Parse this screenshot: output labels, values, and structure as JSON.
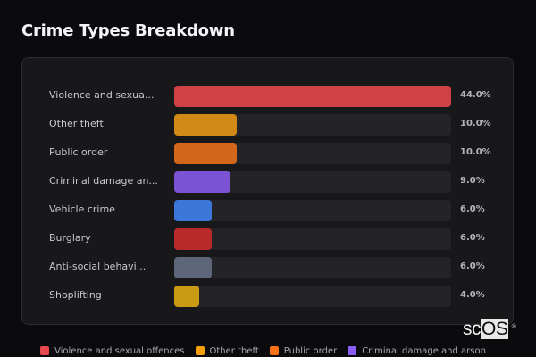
{
  "header": {
    "title": "Crime Types Breakdown"
  },
  "rows": [
    {
      "label": "Violence and sexua...",
      "value": 44.0,
      "pct": "44.0%",
      "color": "#cf4145"
    },
    {
      "label": "Other theft",
      "value": 10.0,
      "pct": "10.0%",
      "color": "#d08a15"
    },
    {
      "label": "Public order",
      "value": 10.0,
      "pct": "10.0%",
      "color": "#d2661b"
    },
    {
      "label": "Criminal damage an...",
      "value": 9.0,
      "pct": "9.0%",
      "color": "#7a53d4"
    },
    {
      "label": "Vehicle crime",
      "value": 6.0,
      "pct": "6.0%",
      "color": "#3a77d8"
    },
    {
      "label": "Burglary",
      "value": 6.0,
      "pct": "6.0%",
      "color": "#bb2a2a"
    },
    {
      "label": "Anti-social behavi...",
      "value": 6.0,
      "pct": "6.0%",
      "color": "#5c6678"
    },
    {
      "label": "Shoplifting",
      "value": 4.0,
      "pct": "4.0%",
      "color": "#c99a14"
    }
  ],
  "legend": [
    {
      "label": "Violence and sexual offences",
      "color": "#e5484d"
    },
    {
      "label": "Other theft",
      "color": "#f59e0b"
    },
    {
      "label": "Public order",
      "color": "#f97316"
    },
    {
      "label": "Criminal damage and arson",
      "color": "#8b5cf6"
    }
  ],
  "logo": {
    "left": "sc",
    "right": "OS",
    "mark": "®"
  },
  "chart_data": {
    "type": "bar",
    "orientation": "horizontal",
    "title": "Crime Types Breakdown",
    "categories": [
      "Violence and sexual offences",
      "Other theft",
      "Public order",
      "Criminal damage and arson",
      "Vehicle crime",
      "Burglary",
      "Anti-social behaviour",
      "Shoplifting"
    ],
    "display_labels": [
      "Violence and sexua...",
      "Other theft",
      "Public order",
      "Criminal damage an...",
      "Vehicle crime",
      "Burglary",
      "Anti-social behavi...",
      "Shoplifting"
    ],
    "values": [
      44.0,
      10.0,
      10.0,
      9.0,
      6.0,
      6.0,
      6.0,
      4.0
    ],
    "unit": "%",
    "xlabel": "",
    "ylabel": "",
    "xlim": [
      0,
      44
    ],
    "grid": false,
    "legend_position": "bottom",
    "legend_entries": [
      "Violence and sexual offences",
      "Other theft",
      "Public order",
      "Criminal damage and arson"
    ]
  }
}
